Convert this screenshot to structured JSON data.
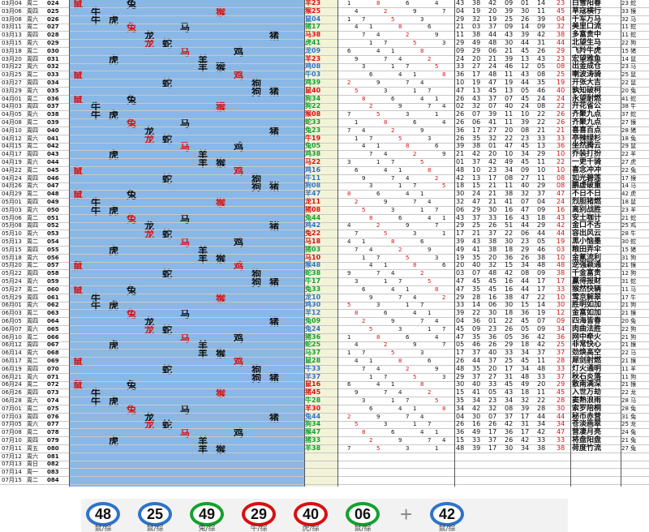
{
  "rows": [
    {
      "date": "03月04",
      "week": "周二",
      "no": "024",
      "res": "羊23",
      "res_c": "#d81010",
      "a": [
        "43",
        "38",
        "42",
        "09",
        "01",
        "14"
      ],
      "b": "23",
      "poem": "白雪阳春",
      "s1": "23",
      "s2": "蛇"
    },
    {
      "date": "03月06",
      "week": "周四",
      "no": "025",
      "res": "猴25",
      "res_c": "#d81010",
      "a": [
        "04",
        "19",
        "20",
        "39",
        "30",
        "11"
      ],
      "b": "45",
      "poem": "草寇横行",
      "s1": "33",
      "s2": "猴"
    },
    {
      "date": "03月08",
      "week": "周六",
      "no": "026",
      "res": "鼠04",
      "res_c": "#2f73c8",
      "a": [
        "29",
        "32",
        "19",
        "25",
        "26",
        "39"
      ],
      "b": "04",
      "poem": "千军万马",
      "s1": "32",
      "s2": "马"
    },
    {
      "date": "03月11",
      "week": "周二",
      "no": "027",
      "res": "猪17",
      "res_c": "#14a030",
      "a": [
        "21",
        "03",
        "37",
        "09",
        "14",
        "09"
      ],
      "b": "32",
      "poem": "美里口流",
      "s1": "11",
      "s2": "蛇"
    },
    {
      "date": "03月13",
      "week": "周四",
      "no": "028",
      "res": "马38",
      "res_c": "#d81010",
      "a": [
        "11",
        "38",
        "44",
        "43",
        "39",
        "42"
      ],
      "b": "38",
      "poem": "多富贵中",
      "s1": "11",
      "s2": "蛇"
    },
    {
      "date": "03月15",
      "week": "周六",
      "no": "029",
      "res": "虎41",
      "res_c": "#14a030",
      "a": [
        "29",
        "49",
        "48",
        "30",
        "44",
        "31"
      ],
      "b": "44",
      "poem": "北望生马",
      "s1": "22",
      "s2": "狗"
    },
    {
      "date": "03月18",
      "week": "周二",
      "no": "030",
      "res": "龙09",
      "res_c": "#2f73c8",
      "a": [
        "09",
        "29",
        "06",
        "21",
        "45",
        "26"
      ],
      "b": "29",
      "poem": "飞羚牛虎",
      "s1": "15",
      "s2": "猪"
    },
    {
      "date": "03月20",
      "week": "周四",
      "no": "031",
      "res": "羊23",
      "res_c": "#d81010",
      "a": [
        "24",
        "20",
        "21",
        "39",
        "13",
        "43"
      ],
      "b": "23",
      "poem": "宏望雅鱼",
      "s1": "14",
      "s2": "鼠"
    },
    {
      "date": "03月22",
      "week": "周六",
      "no": "032",
      "res": "鸡08",
      "res_c": "#2f73c8",
      "a": [
        "33",
        "27",
        "24",
        "46",
        "12",
        "05"
      ],
      "b": "08",
      "poem": "出金成仓",
      "s1": "23",
      "s2": "马"
    },
    {
      "date": "03月25",
      "week": "周二",
      "no": "033",
      "res": "牛03",
      "res_c": "#2f73c8",
      "a": [
        "36",
        "17",
        "48",
        "11",
        "43",
        "08"
      ],
      "b": "25",
      "poem": "喇波涛骑",
      "s1": "25",
      "s2": "鼠"
    },
    {
      "date": "03月27",
      "week": "周四",
      "no": "034",
      "res": "鸡39",
      "res_c": "#14a030",
      "a": [
        "10",
        "19",
        "47",
        "19",
        "44",
        "35"
      ],
      "b": "19",
      "poem": "开张大吉",
      "s1": "22",
      "s2": "鼠"
    },
    {
      "date": "03月29",
      "week": "周六",
      "no": "035",
      "res": "鼠40",
      "res_c": "#d81010",
      "a": [
        "47",
        "13",
        "45",
        "13",
        "05",
        "46"
      ],
      "b": "40",
      "poem": "孰知破柯",
      "s1": "20",
      "s2": "兔"
    },
    {
      "date": "04月01",
      "week": "周二",
      "no": "036",
      "res": "狗34",
      "res_c": "#14a030",
      "a": [
        "26",
        "43",
        "37",
        "07",
        "45",
        "24"
      ],
      "b": "24",
      "poem": "永望耐燃",
      "s1": "41",
      "s2": "蛇"
    },
    {
      "date": "04月03",
      "week": "周四",
      "no": "037",
      "res": "狗22",
      "res_c": "#14a030",
      "a": [
        "02",
        "32",
        "07",
        "40",
        "24",
        "08"
      ],
      "b": "22",
      "poem": "开花省公",
      "s1": "38",
      "s2": "牛"
    },
    {
      "date": "04月05",
      "week": "周六",
      "no": "038",
      "res": "猴08",
      "res_c": "#d81010",
      "a": [
        "26",
        "07",
        "39",
        "11",
        "10",
        "22"
      ],
      "b": "26",
      "poem": "齐聚九点",
      "s1": "37",
      "s2": "蛇"
    },
    {
      "date": "04月08",
      "week": "周二",
      "no": "039",
      "res": "蛇33",
      "res_c": "#14a030",
      "a": [
        "26",
        "06",
        "41",
        "11",
        "39",
        "22"
      ],
      "b": "26",
      "poem": "齐聚九点",
      "s1": "27",
      "s2": "猴"
    },
    {
      "date": "04月10",
      "week": "周四",
      "no": "040",
      "res": "兔23",
      "res_c": "#14a030",
      "a": [
        "36",
        "17",
        "27",
        "20",
        "08",
        "21"
      ],
      "b": "21",
      "poem": "喜喜百点",
      "s1": "28",
      "s2": "猪"
    },
    {
      "date": "04月12",
      "week": "周六",
      "no": "041",
      "res": "牛19",
      "res_c": "#d81010",
      "a": [
        "26",
        "35",
        "32",
        "22",
        "23",
        "33"
      ],
      "b": "33",
      "poem": "亭辣绿杉",
      "s1": "18",
      "s2": "兔"
    },
    {
      "date": "04月15",
      "week": "周二",
      "no": "042",
      "res": "兔05",
      "res_c": "#14a030",
      "a": [
        "39",
        "38",
        "01",
        "47",
        "45",
        "13"
      ],
      "b": "36",
      "poem": "坐然腾云",
      "s1": "29",
      "s2": "鼠"
    },
    {
      "date": "04月17",
      "week": "周四",
      "no": "043",
      "res": "鸡38",
      "res_c": "#14a030",
      "a": [
        "21",
        "42",
        "20",
        "10",
        "34",
        "29"
      ],
      "b": "10",
      "poem": "乔装打扮",
      "s1": "22",
      "s2": "羊"
    },
    {
      "date": "04月19",
      "week": "周六",
      "no": "044",
      "res": "马22",
      "res_c": "#d81010",
      "a": [
        "01",
        "37",
        "42",
        "49",
        "45",
        "11"
      ],
      "b": "22",
      "poem": "一更千骑",
      "s1": "27",
      "s2": "虎"
    },
    {
      "date": "04月22",
      "week": "周二",
      "no": "045",
      "res": "鸡16",
      "res_c": "#2f73c8",
      "a": [
        "48",
        "10",
        "23",
        "34",
        "09",
        "10"
      ],
      "b": "10",
      "poem": "喜念冲冲",
      "s1": "22",
      "s2": "兔"
    },
    {
      "date": "04月24",
      "week": "周四",
      "no": "046",
      "res": "牛11",
      "res_c": "#2f73c8",
      "a": [
        "42",
        "13",
        "17",
        "08",
        "27",
        "11"
      ],
      "b": "08",
      "poem": "如光碧莲",
      "s1": "17",
      "s2": "猴"
    },
    {
      "date": "04月26",
      "week": "周六",
      "no": "047",
      "res": "狗08",
      "res_c": "#2f73c8",
      "a": [
        "18",
        "15",
        "21",
        "11",
        "40",
        "29"
      ],
      "b": "08",
      "poem": "鹏虚破重",
      "s1": "14",
      "s2": "马"
    },
    {
      "date": "04月29",
      "week": "周二",
      "no": "048",
      "res": "羊47",
      "res_c": "#2f73c8",
      "a": [
        "30",
        "24",
        "21",
        "38",
        "32",
        "37"
      ],
      "b": "47",
      "poem": "不日不日",
      "s1": "42",
      "s2": "虎"
    },
    {
      "date": "05月01",
      "week": "周四",
      "no": "049",
      "res": "龙11",
      "res_c": "#d81010",
      "a": [
        "32",
        "47",
        "21",
        "41",
        "07",
        "04"
      ],
      "b": "24",
      "poem": "烈胆猪燃",
      "s1": "18",
      "s2": "鼠"
    },
    {
      "date": "05月03",
      "week": "周六",
      "no": "050",
      "res": "猪08",
      "res_c": "#d81010",
      "a": [
        "06",
        "29",
        "30",
        "16",
        "47",
        "09"
      ],
      "b": "16",
      "poem": "离别战胜",
      "s1": "23",
      "s2": "羊"
    },
    {
      "date": "05月06",
      "week": "周二",
      "no": "051",
      "res": "兔44",
      "res_c": "#14a030",
      "a": [
        "43",
        "37",
        "33",
        "16",
        "43",
        "18"
      ],
      "b": "43",
      "poem": "安土咖计",
      "s1": "21",
      "s2": "蛇"
    },
    {
      "date": "05月08",
      "week": "周四",
      "no": "052",
      "res": "鸡42",
      "res_c": "#2f73c8",
      "a": [
        "29",
        "25",
        "26",
        "51",
        "44",
        "29"
      ],
      "b": "42",
      "poem": "金口不舌",
      "s1": "25",
      "s2": "鸡"
    },
    {
      "date": "05月10",
      "week": "周六",
      "no": "053",
      "res": "兔22",
      "res_c": "#d81010",
      "a": [
        "17",
        "21",
        "37",
        "22",
        "06",
        "44"
      ],
      "b": "44",
      "poem": "容出风云",
      "s1": "28",
      "s2": "牛"
    },
    {
      "date": "05月13",
      "week": "周二",
      "no": "054",
      "res": "马18",
      "res_c": "#d81010",
      "a": [
        "39",
        "43",
        "38",
        "30",
        "23",
        "05"
      ],
      "b": "19",
      "poem": "黑小恼墨",
      "s1": "30",
      "s2": "蛇"
    },
    {
      "date": "05月15",
      "week": "周四",
      "no": "055",
      "res": "猪03",
      "res_c": "#14a030",
      "a": [
        "49",
        "41",
        "38",
        "18",
        "29",
        "46"
      ],
      "b": "03",
      "poem": "粮田弄伞",
      "s1": "15",
      "s2": "猪"
    },
    {
      "date": "05月18",
      "week": "周六",
      "no": "056",
      "res": "马10",
      "res_c": "#d81010",
      "a": [
        "19",
        "35",
        "20",
        "36",
        "26",
        "38"
      ],
      "b": "10",
      "poem": "金氟流利",
      "s1": "31",
      "s2": "狗"
    },
    {
      "date": "05月20",
      "week": "周二",
      "no": "057",
      "res": "猴48",
      "res_c": "#2f73c8",
      "a": [
        "20",
        "40",
        "32",
        "15",
        "34",
        "48"
      ],
      "b": "48",
      "poem": "逆强颖通",
      "s1": "21",
      "s2": "猴"
    },
    {
      "date": "05月22",
      "week": "周四",
      "no": "058",
      "res": "蛇38",
      "res_c": "#14a030",
      "a": [
        "03",
        "07",
        "48",
        "42",
        "08",
        "09"
      ],
      "b": "38",
      "poem": "千金富贵",
      "s1": "12",
      "s2": "狗"
    },
    {
      "date": "05月24",
      "week": "周六",
      "no": "059",
      "res": "牛17",
      "res_c": "#14a030",
      "a": [
        "47",
        "45",
        "45",
        "16",
        "44",
        "17"
      ],
      "b": "17",
      "poem": "赢得报财",
      "s1": "31",
      "s2": "蛇"
    },
    {
      "date": "05月27",
      "week": "周二",
      "no": "060",
      "res": "兔33",
      "res_c": "#14a030",
      "a": [
        "47",
        "35",
        "45",
        "16",
        "44",
        "17"
      ],
      "b": "33",
      "poem": "猴然快辆",
      "s1": "11",
      "s2": "马"
    },
    {
      "date": "05月29",
      "week": "周四",
      "no": "061",
      "res": "龙10",
      "res_c": "#2f73c8",
      "a": [
        "29",
        "28",
        "16",
        "38",
        "47",
        "22"
      ],
      "b": "10",
      "poem": "莺京解翠",
      "s1": "17",
      "s2": "牛"
    },
    {
      "date": "06月01",
      "week": "周六",
      "no": "062",
      "res": "鸡30",
      "res_c": "#2f73c8",
      "a": [
        "33",
        "14",
        "06",
        "30",
        "15",
        "14"
      ],
      "b": "30",
      "poem": "胜明如加",
      "s1": "21",
      "s2": "狗"
    },
    {
      "date": "06月03",
      "week": "周二",
      "no": "063",
      "res": "羊12",
      "res_c": "#2f73c8",
      "a": [
        "39",
        "22",
        "30",
        "18",
        "36",
        "19"
      ],
      "b": "12",
      "poem": "金富如加",
      "s1": "21",
      "s2": "猴"
    },
    {
      "date": "06月05",
      "week": "周四",
      "no": "064",
      "res": "兔09",
      "res_c": "#14a030",
      "a": [
        "04",
        "36",
        "01",
        "22",
        "45",
        "07"
      ],
      "b": "09",
      "poem": "四海皆春",
      "s1": "20",
      "s2": "兔"
    },
    {
      "date": "06月07",
      "week": "周六",
      "no": "065",
      "res": "兔24",
      "res_c": "#2f73c8",
      "a": [
        "45",
        "09",
        "23",
        "26",
        "05",
        "09"
      ],
      "b": "34",
      "poem": "肉曲法胜",
      "s1": "22",
      "s2": "狗"
    },
    {
      "date": "06月10",
      "week": "周二",
      "no": "066",
      "res": "猪36",
      "res_c": "#14a030",
      "a": [
        "47",
        "35",
        "36",
        "05",
        "36",
        "42"
      ],
      "b": "36",
      "poem": "网中牵火",
      "s1": "21",
      "s2": "狗"
    },
    {
      "date": "06月12",
      "week": "周四",
      "no": "067",
      "res": "蛇25",
      "res_c": "#14a030",
      "a": [
        "05",
        "46",
        "26",
        "29",
        "18",
        "42"
      ],
      "b": "25",
      "poem": "非常快心",
      "s1": "21",
      "s2": "猴"
    },
    {
      "date": "06月14",
      "week": "周六",
      "no": "068",
      "res": "马37",
      "res_c": "#14a030",
      "a": [
        "17",
        "37",
        "40",
        "33",
        "34",
        "37"
      ],
      "b": "37",
      "poem": "劲焕高空",
      "s1": "22",
      "s2": "马"
    },
    {
      "date": "06月17",
      "week": "周二",
      "no": "069",
      "res": "鼠28",
      "res_c": "#14a030",
      "a": [
        "26",
        "44",
        "37",
        "25",
        "45",
        "11"
      ],
      "b": "28",
      "poem": "犀剑射燃",
      "s1": "21",
      "s2": "猴"
    },
    {
      "date": "06月19",
      "week": "周四",
      "no": "070",
      "res": "牛33",
      "res_c": "#2f73c8",
      "a": [
        "48",
        "35",
        "20",
        "17",
        "34",
        "48"
      ],
      "b": "33",
      "poem": "灯火通明",
      "s1": "11",
      "s2": "羊"
    },
    {
      "date": "06月21",
      "week": "周六",
      "no": "071",
      "res": "羊37",
      "res_c": "#2f73c8",
      "a": [
        "29",
        "37",
        "27",
        "31",
        "48",
        "33"
      ],
      "b": "37",
      "poem": "秋石炎落",
      "s1": "11",
      "s2": "狗"
    },
    {
      "date": "06月24",
      "week": "周二",
      "no": "072",
      "res": "鼠16",
      "res_c": "#d81010",
      "a": [
        "30",
        "40",
        "33",
        "45",
        "49",
        "20"
      ],
      "b": "29",
      "poem": "散南满深",
      "s1": "21",
      "s2": "猴"
    },
    {
      "date": "06月26",
      "week": "周四",
      "no": "073",
      "res": "猪45",
      "res_c": "#d81010",
      "a": [
        "15",
        "41",
        "05",
        "43",
        "18",
        "11"
      ],
      "b": "45",
      "poem": "入世万劫",
      "s1": "22",
      "s2": "龙"
    },
    {
      "date": "06月28",
      "week": "周六",
      "no": "074",
      "res": "牛28",
      "res_c": "#14a030",
      "a": [
        "35",
        "34",
        "23",
        "34",
        "32",
        "22"
      ],
      "b": "28",
      "poem": "窦熟浪雨",
      "s1": "28",
      "s2": "马"
    },
    {
      "date": "07月01",
      "week": "周二",
      "no": "075",
      "res": "羊30",
      "res_c": "#d81010",
      "a": [
        "34",
        "42",
        "32",
        "08",
        "39",
        "28"
      ],
      "b": "30",
      "poem": "索罗陪桐",
      "s1": "28",
      "s2": "兔"
    },
    {
      "date": "07月03",
      "week": "周四",
      "no": "076",
      "res": "兔44",
      "res_c": "#2f73c8",
      "a": [
        "04",
        "30",
        "07",
        "37",
        "17",
        "44"
      ],
      "b": "44",
      "poem": "秘币赤营",
      "s1": "31",
      "s2": "兔"
    },
    {
      "date": "07月05",
      "week": "周六",
      "no": "077",
      "res": "狗34",
      "res_c": "#14a030",
      "a": [
        "26",
        "16",
        "26",
        "42",
        "31",
        "34"
      ],
      "b": "34",
      "poem": "苍淡画翠",
      "s1": "25",
      "s2": "龙"
    },
    {
      "date": "07月08",
      "week": "周二",
      "no": "078",
      "res": "猴47",
      "res_c": "#14a030",
      "a": [
        "36",
        "49",
        "17",
        "36",
        "17",
        "42"
      ],
      "b": "47",
      "poem": "营凄月亮",
      "s1": "24",
      "s2": "兔"
    },
    {
      "date": "07月10",
      "week": "周四",
      "no": "079",
      "res": "猪33",
      "res_c": "#14a030",
      "a": [
        "15",
        "33",
        "37",
        "26",
        "42",
        "33"
      ],
      "b": "33",
      "poem": "将盘阳盘",
      "s1": "21",
      "s2": "兔"
    },
    {
      "date": "07月11",
      "week": "周五",
      "no": "080",
      "res": "羊38",
      "res_c": "#14a030",
      "a": [
        "48",
        "39",
        "17",
        "30",
        "34",
        "38"
      ],
      "b": "38",
      "poem": "荷度竹流",
      "s1": "27",
      "s2": "兔"
    },
    {
      "date": "07月12",
      "week": "周六",
      "no": "081",
      "res": "",
      "res_c": "#2f73c8",
      "a": [
        "",
        "",
        "",
        "",
        "",
        ""
      ],
      "b": "",
      "poem": "",
      "s1": "",
      "s2": ""
    },
    {
      "date": "07月13",
      "week": "周日",
      "no": "082",
      "res": "",
      "res_c": "#2f73c8",
      "a": [
        "",
        "",
        "",
        "",
        "",
        ""
      ],
      "b": "",
      "poem": "",
      "s1": "",
      "s2": ""
    },
    {
      "date": "07月14",
      "week": "周一",
      "no": "083",
      "res": "",
      "res_c": "#2f73c8",
      "a": [
        "",
        "",
        "",
        "",
        "",
        ""
      ],
      "b": "",
      "poem": "",
      "s1": "",
      "s2": ""
    },
    {
      "date": "07月15",
      "week": "周二",
      "no": "084",
      "res": "",
      "res_c": "#2f73c8",
      "a": [
        "",
        "",
        "",
        "",
        "",
        ""
      ],
      "b": "",
      "poem": "",
      "s1": "",
      "s2": ""
    }
  ],
  "zodiac_names": [
    "鼠",
    "牛",
    "虎",
    "兔",
    "龙",
    "蛇",
    "马",
    "羊",
    "猴",
    "鸡",
    "狗",
    "猪"
  ],
  "balls": [
    {
      "num": "48",
      "label": "鼠/综",
      "color": "blue"
    },
    {
      "num": "25",
      "label": "鼠/综",
      "color": "blue"
    },
    {
      "num": "49",
      "label": "兔/综",
      "color": "green"
    },
    {
      "num": "29",
      "label": "牛/综",
      "color": "red"
    },
    {
      "num": "40",
      "label": "虎/综",
      "color": "red"
    },
    {
      "num": "06",
      "label": "鼠/综",
      "color": "green"
    }
  ],
  "special_ball": {
    "num": "42",
    "label": "鼠/综",
    "color": "blue"
  },
  "plus_sign": "+",
  "colors": {
    "zodiac_bg": "#8ab8e6",
    "red": "#d81010",
    "green": "#14a030",
    "blue": "#2f73c8",
    "yellow": "#ffe000"
  }
}
